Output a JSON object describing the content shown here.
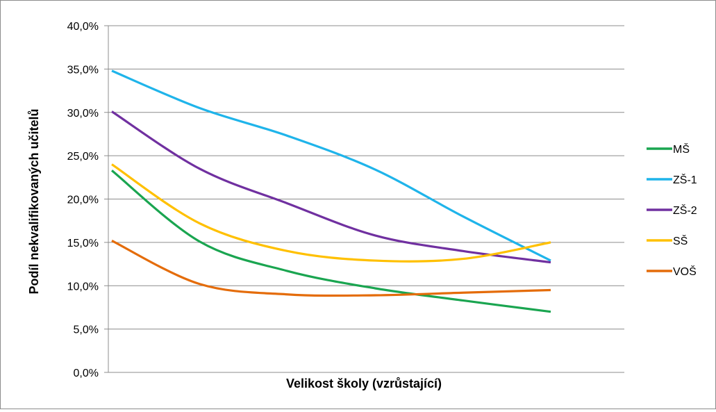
{
  "chart_data": {
    "type": "line",
    "title": "",
    "xlabel": "Velikost školy (vzrůstající)",
    "ylabel": "Podíl nekvalifikovaných učitelů",
    "ylim": [
      0,
      40
    ],
    "y_ticks": [
      "0,0%",
      "5,0%",
      "10,0%",
      "15,0%",
      "20,0%",
      "25,0%",
      "30,0%",
      "35,0%",
      "40,0%"
    ],
    "x": [
      1,
      2,
      3,
      4,
      5,
      6
    ],
    "grid": true,
    "legend_position": "right",
    "smooth": true,
    "series": [
      {
        "name": "MŠ",
        "color": "#1aa550",
        "values": [
          23.3,
          15.1,
          11.7,
          9.7,
          8.3,
          7.0
        ]
      },
      {
        "name": "ZŠ-1",
        "color": "#1fb4ea",
        "values": [
          34.8,
          30.5,
          27.3,
          23.4,
          18.0,
          12.9
        ]
      },
      {
        "name": "ZŠ-2",
        "color": "#7030a0",
        "values": [
          30.1,
          23.5,
          19.5,
          15.8,
          14.0,
          12.7
        ]
      },
      {
        "name": "SŠ",
        "color": "#ffc000",
        "values": [
          24.0,
          17.2,
          14.0,
          12.9,
          13.1,
          15.0
        ]
      },
      {
        "name": "VOŠ",
        "color": "#e46c0a",
        "values": [
          15.2,
          10.2,
          9.0,
          8.9,
          9.2,
          9.5
        ]
      }
    ]
  }
}
